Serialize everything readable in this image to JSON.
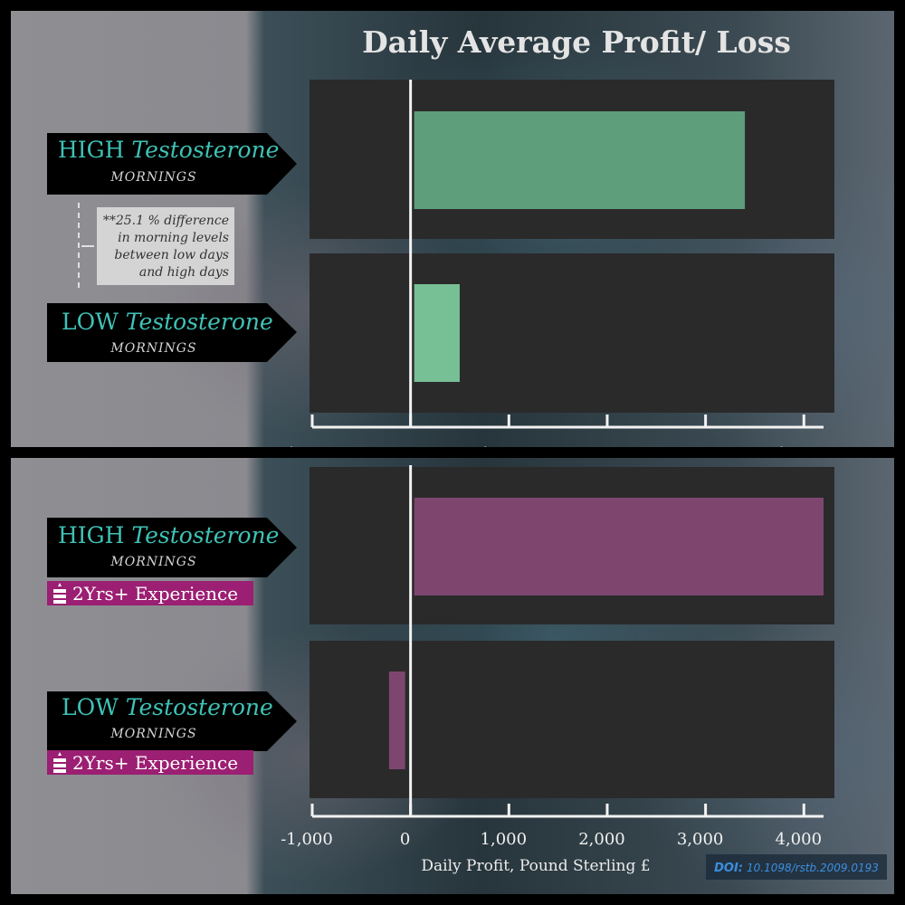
{
  "title": "Daily Average  Profit/ Loss",
  "xlabel": "Daily Profit, Pound Sterling £",
  "doi": {
    "prefix": "DOI:",
    "value": "10.1098/rstb.2009.0193"
  },
  "ticks": [
    "-1,000",
    "0",
    "1,000",
    "2,000",
    "3,000",
    "4,000"
  ],
  "tick_values": [
    -1000,
    0,
    1000,
    2000,
    3000,
    4000
  ],
  "xlim": [
    -1000,
    4200
  ],
  "note": [
    "**25.1 % difference",
    "in morning levels",
    "between low days",
    "and high days"
  ],
  "colors": {
    "top_bar": "#5e9e7a",
    "top_bar_low": "#77bf95",
    "bottom_bar": "#7e466f",
    "badge": "#9b1f72",
    "label": "#3fc2b6"
  },
  "icons": {
    "badge_icon": "stacked-books-icon"
  },
  "chart_data": [
    {
      "type": "bar",
      "orientation": "horizontal",
      "categories": [
        "HIGH Testosterone MORNINGS",
        "LOW Testosterone MORNINGS"
      ],
      "values": [
        3400,
        500
      ],
      "xlim": [
        -1000,
        4200
      ]
    },
    {
      "type": "bar",
      "orientation": "horizontal",
      "categories": [
        "HIGH Testosterone MORNINGS 2Yrs+ Experience",
        "LOW Testosterone MORNINGS 2Yrs+ Experience"
      ],
      "values": [
        4200,
        -200
      ],
      "xlim": [
        -1000,
        4200
      ]
    }
  ],
  "labels": {
    "high_word": "HIGH",
    "low_word": "LOW",
    "testosterone": "Testosterone",
    "mornings": "MORNINGS",
    "experience": "2Yrs+ Experience"
  }
}
